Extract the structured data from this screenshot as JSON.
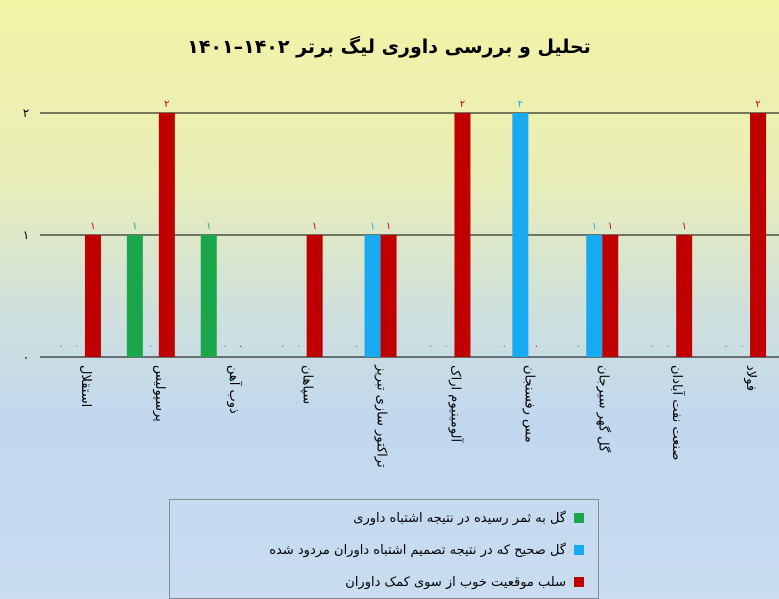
{
  "chart_data": {
    "type": "bar",
    "title": "تحلیل و بررسی داوری لیگ برتر ۱۴۰۲–۱۴۰۱",
    "categories": [
      "استقلال",
      "پرسپولیس",
      "ذوب آهن",
      "سپاهان",
      "تراکتور سازی تبریز",
      "آلومینیوم اراک",
      "مس رفسنجان",
      "گل گهر سیرجان",
      "صنعت نفت آبادان",
      "فولاد"
    ],
    "series": [
      {
        "name": "گل به ثمر رسیده در نتیجه اشتباه داوری",
        "color": "#1aa64a",
        "values": [
          0,
          1,
          1,
          0,
          0,
          0,
          0,
          0,
          0,
          0
        ]
      },
      {
        "name": "گل صحیح که در نتیجه تصمیم اشتباه داوران مردود شده",
        "color": "#18aaf0",
        "values": [
          0,
          0,
          0,
          0,
          1,
          0,
          2,
          1,
          0,
          0
        ]
      },
      {
        "name": "سلب موقعیت خوب از سوی کمک داوران",
        "color": "#c00000",
        "values": [
          1,
          2,
          0,
          1,
          1,
          2,
          0,
          1,
          1,
          2
        ]
      }
    ],
    "yticks": [
      "۰",
      "۱",
      "۲"
    ],
    "ylim": [
      0,
      2
    ],
    "legend_position": "bottom",
    "grid": true
  }
}
